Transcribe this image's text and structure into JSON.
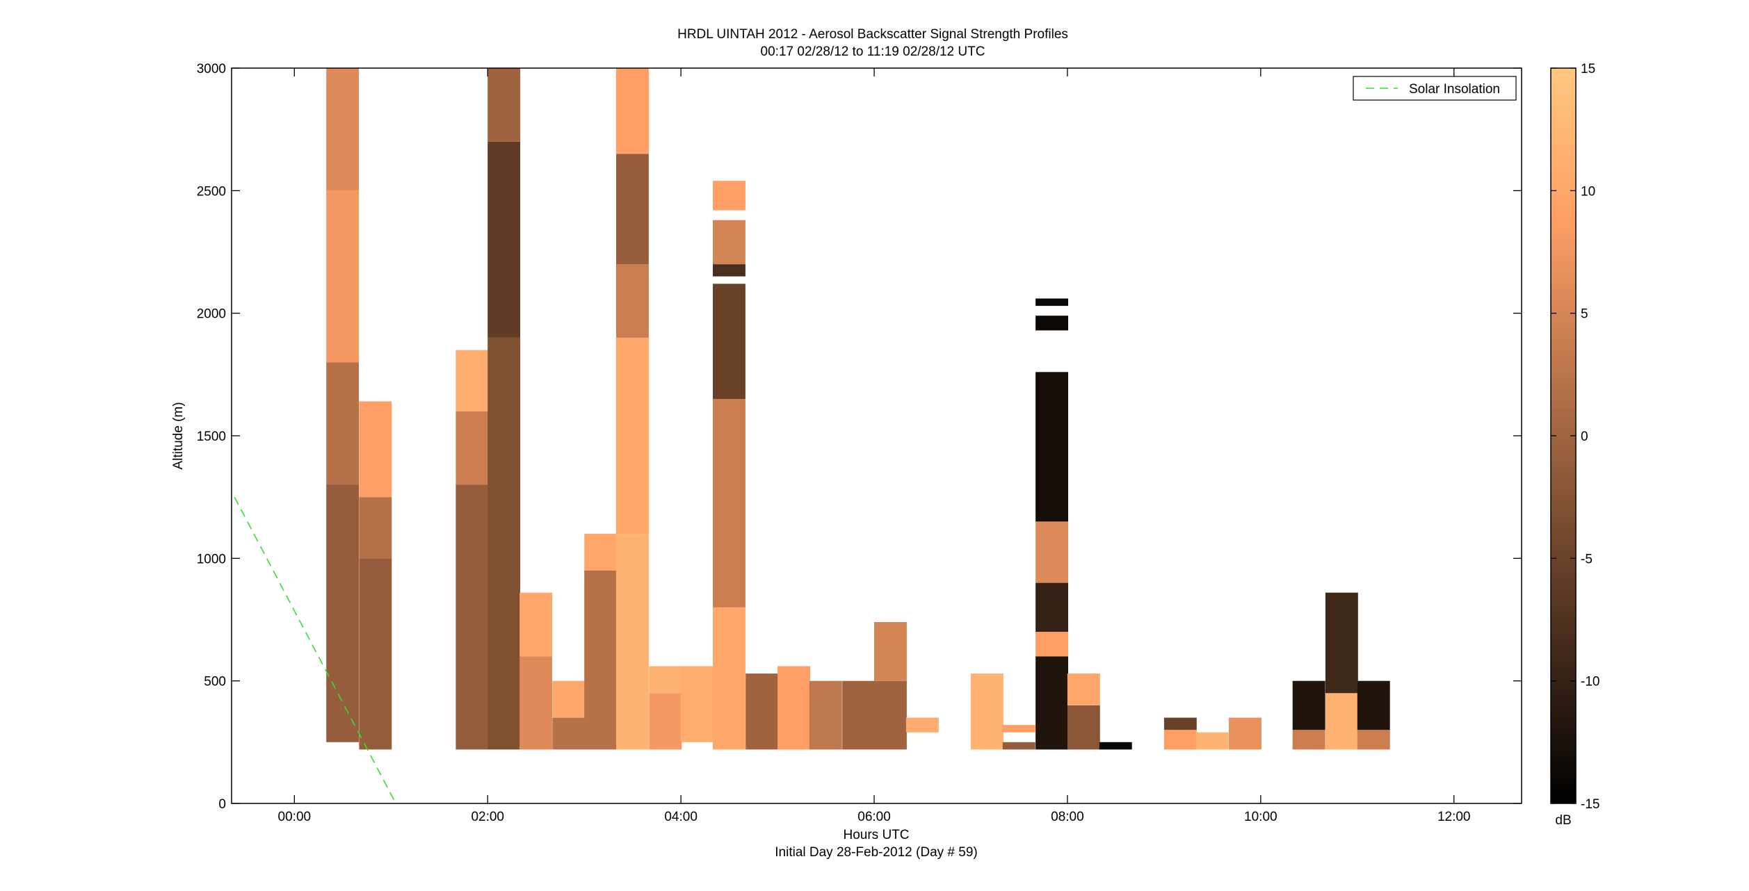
{
  "chart_data": {
    "type": "heatmap",
    "title": "HRDL UINTAH 2012 - Aerosol Backscatter Signal Strength Profiles",
    "subtitle": "00:17 02/28/12 to 11:19 02/28/12  UTC",
    "xlabel": "Hours UTC",
    "xlabel2": "Initial Day 28-Feb-2012 (Day # 59)",
    "ylabel": "Altitude (m)",
    "xlim": [
      -0.65,
      12.7
    ],
    "ylim": [
      0,
      3000
    ],
    "x_ticks": [
      {
        "value": 0,
        "label": "00:00"
      },
      {
        "value": 2,
        "label": "02:00"
      },
      {
        "value": 4,
        "label": "04:00"
      },
      {
        "value": 6,
        "label": "06:00"
      },
      {
        "value": 8,
        "label": "08:00"
      },
      {
        "value": 10,
        "label": "10:00"
      },
      {
        "value": 12,
        "label": "12:00"
      }
    ],
    "y_ticks": [
      {
        "value": 0,
        "label": "0"
      },
      {
        "value": 500,
        "label": "500"
      },
      {
        "value": 1000,
        "label": "1000"
      },
      {
        "value": 1500,
        "label": "1500"
      },
      {
        "value": 2000,
        "label": "2000"
      },
      {
        "value": 2500,
        "label": "2500"
      },
      {
        "value": 3000,
        "label": "3000"
      }
    ],
    "colorbar": {
      "unit": "dB",
      "range": [
        -15,
        15
      ],
      "ticks": [
        {
          "value": 15,
          "label": "15"
        },
        {
          "value": 10,
          "label": "10"
        },
        {
          "value": 5,
          "label": "5"
        },
        {
          "value": 0,
          "label": "0"
        },
        {
          "value": -5,
          "label": "-5"
        },
        {
          "value": -10,
          "label": "-10"
        },
        {
          "value": -15,
          "label": "-15"
        }
      ],
      "colormap": "copper"
    },
    "legend": {
      "position": "top-right",
      "entries": [
        {
          "name": "Solar Insolation",
          "style": "dashed",
          "color": "#33dd33"
        }
      ]
    },
    "solar_insolation": {
      "x": [
        -0.62,
        1.05
      ],
      "y": [
        1250,
        0
      ]
    },
    "profile_width_hours": 0.333,
    "profiles": [
      {
        "x": 0.33,
        "segments": [
          {
            "bottom": 250,
            "top": 1300,
            "value": -1
          },
          {
            "bottom": 1300,
            "top": 1800,
            "value": 2
          },
          {
            "bottom": 1800,
            "top": 2500,
            "value": 8
          },
          {
            "bottom": 2500,
            "top": 3000,
            "value": 6
          }
        ]
      },
      {
        "x": 0.67,
        "segments": [
          {
            "bottom": 220,
            "top": 1000,
            "value": -1
          },
          {
            "bottom": 1000,
            "top": 1250,
            "value": 2
          },
          {
            "bottom": 1250,
            "top": 1640,
            "value": 9
          }
        ]
      },
      {
        "x": 1.67,
        "segments": [
          {
            "bottom": 220,
            "top": 1300,
            "value": -1
          },
          {
            "bottom": 1300,
            "top": 1600,
            "value": 4
          },
          {
            "bottom": 1600,
            "top": 1850,
            "value": 11
          }
        ]
      },
      {
        "x": 2.0,
        "segments": [
          {
            "bottom": 220,
            "top": 1900,
            "value": -3
          },
          {
            "bottom": 1900,
            "top": 2700,
            "value": -6
          },
          {
            "bottom": 2700,
            "top": 3000,
            "value": 0
          }
        ]
      },
      {
        "x": 2.33,
        "segments": [
          {
            "bottom": 220,
            "top": 600,
            "value": 6
          },
          {
            "bottom": 600,
            "top": 860,
            "value": 10
          }
        ]
      },
      {
        "x": 2.67,
        "segments": [
          {
            "bottom": 220,
            "top": 350,
            "value": 2
          },
          {
            "bottom": 350,
            "top": 500,
            "value": 10
          }
        ]
      },
      {
        "x": 3.0,
        "segments": [
          {
            "bottom": 220,
            "top": 950,
            "value": 2
          },
          {
            "bottom": 950,
            "top": 1100,
            "value": 10
          }
        ]
      },
      {
        "x": 3.33,
        "segments": [
          {
            "bottom": 220,
            "top": 1100,
            "value": 12
          },
          {
            "bottom": 1100,
            "top": 1900,
            "value": 10
          },
          {
            "bottom": 1900,
            "top": 2200,
            "value": 4
          },
          {
            "bottom": 2200,
            "top": 2650,
            "value": -1
          },
          {
            "bottom": 2650,
            "top": 3000,
            "value": 9
          }
        ]
      },
      {
        "x": 3.67,
        "segments": [
          {
            "bottom": 220,
            "top": 450,
            "value": 8
          },
          {
            "bottom": 450,
            "top": 560,
            "value": 12
          }
        ]
      },
      {
        "x": 4.0,
        "segments": [
          {
            "bottom": 250,
            "top": 560,
            "value": 11
          }
        ]
      },
      {
        "x": 4.33,
        "segments": [
          {
            "bottom": 220,
            "top": 800,
            "value": 10
          },
          {
            "bottom": 800,
            "top": 1650,
            "value": 4
          },
          {
            "bottom": 1650,
            "top": 2120,
            "value": -5
          },
          {
            "bottom": 2150,
            "top": 2200,
            "value": -8
          },
          {
            "bottom": 2200,
            "top": 2380,
            "value": 5
          },
          {
            "bottom": 2420,
            "top": 2540,
            "value": 9
          }
        ]
      },
      {
        "x": 4.67,
        "segments": [
          {
            "bottom": 220,
            "top": 530,
            "value": 0
          }
        ]
      },
      {
        "x": 5.0,
        "segments": [
          {
            "bottom": 220,
            "top": 560,
            "value": 9
          }
        ]
      },
      {
        "x": 5.33,
        "segments": [
          {
            "bottom": 220,
            "top": 500,
            "value": 3
          }
        ]
      },
      {
        "x": 5.67,
        "segments": [
          {
            "bottom": 220,
            "top": 500,
            "value": 0
          }
        ]
      },
      {
        "x": 6.0,
        "segments": [
          {
            "bottom": 220,
            "top": 500,
            "value": 0
          },
          {
            "bottom": 500,
            "top": 740,
            "value": 5
          }
        ]
      },
      {
        "x": 6.33,
        "segments": [
          {
            "bottom": 290,
            "top": 350,
            "value": 11
          }
        ]
      },
      {
        "x": 7.0,
        "segments": [
          {
            "bottom": 220,
            "top": 530,
            "value": 12
          }
        ]
      },
      {
        "x": 7.33,
        "segments": [
          {
            "bottom": 220,
            "top": 250,
            "value": -1
          },
          {
            "bottom": 290,
            "top": 320,
            "value": 9
          }
        ]
      },
      {
        "x": 7.67,
        "segments": [
          {
            "bottom": 220,
            "top": 600,
            "value": -12
          },
          {
            "bottom": 600,
            "top": 700,
            "value": 9
          },
          {
            "bottom": 700,
            "top": 900,
            "value": -10
          },
          {
            "bottom": 900,
            "top": 1150,
            "value": 6
          },
          {
            "bottom": 1150,
            "top": 1760,
            "value": -13
          },
          {
            "bottom": 1930,
            "top": 1990,
            "value": -14
          },
          {
            "bottom": 2030,
            "top": 2060,
            "value": -14
          }
        ]
      },
      {
        "x": 8.0,
        "segments": [
          {
            "bottom": 220,
            "top": 400,
            "value": -2
          },
          {
            "bottom": 400,
            "top": 530,
            "value": 10
          }
        ]
      },
      {
        "x": 8.33,
        "segments": [
          {
            "bottom": 220,
            "top": 250,
            "value": -14
          }
        ]
      },
      {
        "x": 9.0,
        "segments": [
          {
            "bottom": 220,
            "top": 300,
            "value": 9
          },
          {
            "bottom": 300,
            "top": 350,
            "value": -5
          }
        ]
      },
      {
        "x": 9.33,
        "segments": [
          {
            "bottom": 220,
            "top": 290,
            "value": 12
          }
        ]
      },
      {
        "x": 9.67,
        "segments": [
          {
            "bottom": 220,
            "top": 350,
            "value": 7
          }
        ]
      },
      {
        "x": 10.33,
        "segments": [
          {
            "bottom": 220,
            "top": 300,
            "value": 4
          },
          {
            "bottom": 300,
            "top": 500,
            "value": -12
          }
        ]
      },
      {
        "x": 10.67,
        "segments": [
          {
            "bottom": 220,
            "top": 450,
            "value": 12
          },
          {
            "bottom": 450,
            "top": 860,
            "value": -9
          }
        ]
      },
      {
        "x": 11.0,
        "segments": [
          {
            "bottom": 220,
            "top": 300,
            "value": 4
          },
          {
            "bottom": 300,
            "top": 500,
            "value": -12
          }
        ]
      }
    ]
  }
}
